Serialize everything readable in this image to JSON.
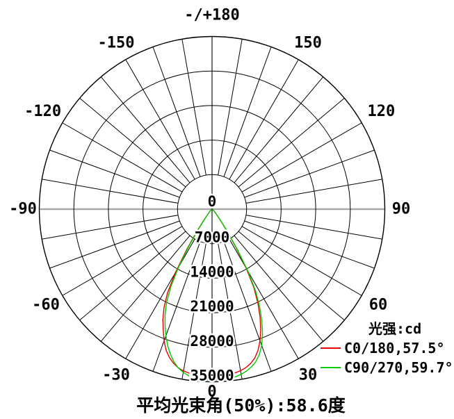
{
  "colors": {
    "grid": "#000000",
    "horizontal_axis": "#a8a8a8",
    "c0_curve": "#e60000",
    "c90_curve": "#00cc00",
    "background": "#ffffff"
  },
  "legend": {
    "title": "光强:cd"
  },
  "chart_data": {
    "type": "polar",
    "title": "-/+180",
    "footer": "平均光束角(50%):58.6度",
    "legend_title": "光强:cd",
    "radial_ticks": [
      "0",
      "7000",
      "14000",
      "21000",
      "28000",
      "35000"
    ],
    "radial_max": 35000,
    "angle_grid_step_deg": 10,
    "angle_labels": [
      {
        "deg": 180,
        "text": "-/+180"
      },
      {
        "deg": 150,
        "text": "150"
      },
      {
        "deg": 120,
        "text": "120"
      },
      {
        "deg": 90,
        "text": "90"
      },
      {
        "deg": 60,
        "text": "60"
      },
      {
        "deg": 30,
        "text": "30"
      },
      {
        "deg": 0,
        "text": "0"
      },
      {
        "deg": -30,
        "text": "-30"
      },
      {
        "deg": -60,
        "text": "-60"
      },
      {
        "deg": -90,
        "text": "-90"
      },
      {
        "deg": -120,
        "text": "-120"
      },
      {
        "deg": -150,
        "text": "-150"
      }
    ],
    "series": [
      {
        "name": "C0/180",
        "beam_angle_50pct": "57.5°",
        "label": "C0/180,57.5°",
        "color": "#e60000",
        "peak_cd": 33800,
        "points": [
          [
            -90,
            120
          ],
          [
            -80,
            130
          ],
          [
            -70,
            150
          ],
          [
            -60,
            200
          ],
          [
            -52,
            300
          ],
          [
            -46,
            500
          ],
          [
            -42,
            900
          ],
          [
            -40,
            1300
          ],
          [
            -38,
            2000
          ],
          [
            -36,
            3300
          ],
          [
            -34,
            5800
          ],
          [
            -32,
            9800
          ],
          [
            -30,
            14800
          ],
          [
            -28,
            19200
          ],
          [
            -26,
            22200
          ],
          [
            -24,
            24500
          ],
          [
            -22,
            26400
          ],
          [
            -20,
            28400
          ],
          [
            -18,
            30100
          ],
          [
            -16,
            31300
          ],
          [
            -14,
            32200
          ],
          [
            -12,
            32900
          ],
          [
            -10,
            33300
          ],
          [
            -8,
            33550
          ],
          [
            -6,
            33700
          ],
          [
            -4,
            33780
          ],
          [
            -2,
            33800
          ],
          [
            0,
            33800
          ],
          [
            2,
            33780
          ],
          [
            4,
            33730
          ],
          [
            6,
            33650
          ],
          [
            8,
            33500
          ],
          [
            10,
            33250
          ],
          [
            12,
            32850
          ],
          [
            14,
            32250
          ],
          [
            16,
            31400
          ],
          [
            18,
            30100
          ],
          [
            20,
            28400
          ],
          [
            22,
            26300
          ],
          [
            24,
            23900
          ],
          [
            26,
            21200
          ],
          [
            28,
            18100
          ],
          [
            30,
            13900
          ],
          [
            32,
            9200
          ],
          [
            34,
            5600
          ],
          [
            36,
            3400
          ],
          [
            38,
            2100
          ],
          [
            40,
            1400
          ],
          [
            42,
            1000
          ],
          [
            46,
            550
          ],
          [
            52,
            320
          ],
          [
            60,
            200
          ],
          [
            70,
            150
          ],
          [
            80,
            130
          ],
          [
            90,
            120
          ]
        ]
      },
      {
        "name": "C90/270",
        "beam_angle_50pct": "59.7°",
        "label": "C90/270,59.7°",
        "color": "#00cc00",
        "peak_cd": 34680,
        "points": [
          [
            -90,
            120
          ],
          [
            -80,
            130
          ],
          [
            -70,
            150
          ],
          [
            -60,
            190
          ],
          [
            -52,
            280
          ],
          [
            -46,
            450
          ],
          [
            -42,
            800
          ],
          [
            -40,
            1150
          ],
          [
            -38,
            1750
          ],
          [
            -36,
            2900
          ],
          [
            -34,
            5100
          ],
          [
            -32,
            8800
          ],
          [
            -30,
            13600
          ],
          [
            -28,
            17800
          ],
          [
            -26,
            21000
          ],
          [
            -24,
            23400
          ],
          [
            -22,
            25400
          ],
          [
            -20,
            27300
          ],
          [
            -18,
            29100
          ],
          [
            -16,
            30600
          ],
          [
            -14,
            31900
          ],
          [
            -12,
            32900
          ],
          [
            -10,
            33600
          ],
          [
            -8,
            34100
          ],
          [
            -6,
            34400
          ],
          [
            -4,
            34570
          ],
          [
            -2,
            34650
          ],
          [
            0,
            34680
          ],
          [
            2,
            34660
          ],
          [
            4,
            34600
          ],
          [
            6,
            34480
          ],
          [
            8,
            34300
          ],
          [
            10,
            34000
          ],
          [
            12,
            33550
          ],
          [
            14,
            32950
          ],
          [
            16,
            32150
          ],
          [
            18,
            31000
          ],
          [
            20,
            29400
          ],
          [
            22,
            27300
          ],
          [
            24,
            24800
          ],
          [
            26,
            22000
          ],
          [
            28,
            18800
          ],
          [
            30,
            14600
          ],
          [
            32,
            9800
          ],
          [
            34,
            6100
          ],
          [
            36,
            3700
          ],
          [
            38,
            2300
          ],
          [
            40,
            1500
          ],
          [
            42,
            1050
          ],
          [
            46,
            600
          ],
          [
            52,
            340
          ],
          [
            60,
            200
          ],
          [
            70,
            150
          ],
          [
            80,
            130
          ],
          [
            90,
            120
          ]
        ]
      }
    ]
  }
}
